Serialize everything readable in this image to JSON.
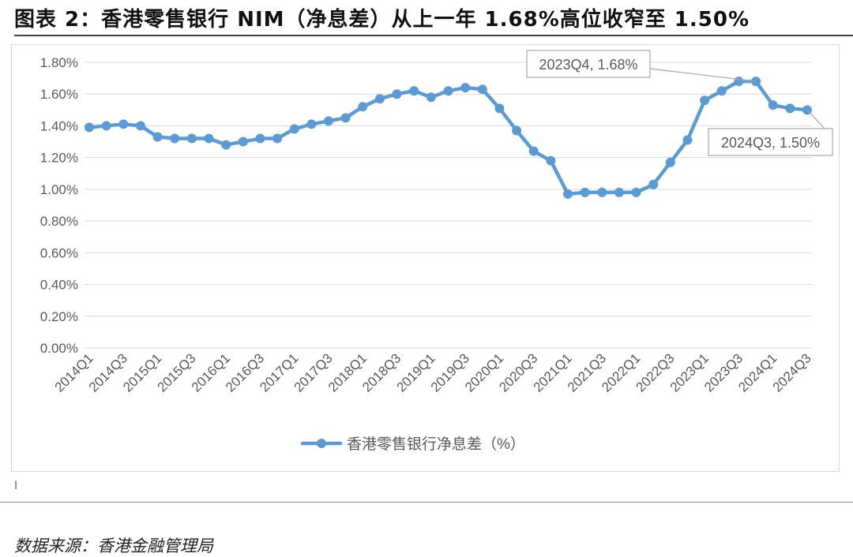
{
  "figure": {
    "title": "图表 2：香港零售银行 NIM（净息差）从上一年 1.68%高位收窄至 1.50%",
    "note_mark": "I",
    "source": "数据来源：香港金融管理局"
  },
  "chart_data": {
    "type": "line",
    "title": "",
    "xlabel": "",
    "ylabel": "",
    "ylim": [
      0,
      1.8
    ],
    "y_ticks": [
      "0.00%",
      "0.20%",
      "0.40%",
      "0.60%",
      "0.80%",
      "1.00%",
      "1.20%",
      "1.40%",
      "1.60%",
      "1.80%"
    ],
    "y_tick_values": [
      0,
      0.2,
      0.4,
      0.6,
      0.8,
      1.0,
      1.2,
      1.4,
      1.6,
      1.8
    ],
    "grid": true,
    "legend_position": "bottom",
    "x_tick_labels": [
      "2014Q1",
      "2014Q3",
      "2015Q1",
      "2015Q3",
      "2016Q1",
      "2016Q3",
      "2017Q1",
      "2017Q3",
      "2018Q1",
      "2018Q3",
      "2019Q1",
      "2019Q3",
      "2020Q1",
      "2020Q3",
      "2021Q1",
      "2021Q3",
      "2022Q1",
      "2022Q3",
      "2023Q1",
      "2023Q3",
      "2024Q1",
      "2024Q3"
    ],
    "categories": [
      "2014Q1",
      "2014Q2",
      "2014Q3",
      "2014Q4",
      "2015Q1",
      "2015Q2",
      "2015Q3",
      "2015Q4",
      "2016Q1",
      "2016Q2",
      "2016Q3",
      "2016Q4",
      "2017Q1",
      "2017Q2",
      "2017Q3",
      "2017Q4",
      "2018Q1",
      "2018Q2",
      "2018Q3",
      "2018Q4",
      "2019Q1",
      "2019Q2",
      "2019Q3",
      "2019Q4",
      "2020Q1",
      "2020Q2",
      "2020Q3",
      "2020Q4",
      "2021Q1",
      "2021Q2",
      "2021Q3",
      "2021Q4",
      "2022Q1",
      "2022Q2",
      "2022Q3",
      "2022Q4",
      "2023Q1",
      "2023Q2",
      "2023Q3",
      "2023Q4",
      "2024Q1",
      "2024Q2",
      "2024Q3"
    ],
    "series": [
      {
        "name": "香港零售银行净息差（%）",
        "color": "#5b9bd5",
        "values": [
          1.39,
          1.4,
          1.41,
          1.4,
          1.33,
          1.32,
          1.32,
          1.32,
          1.28,
          1.3,
          1.32,
          1.32,
          1.38,
          1.41,
          1.43,
          1.45,
          1.52,
          1.57,
          1.6,
          1.62,
          1.58,
          1.62,
          1.64,
          1.63,
          1.51,
          1.37,
          1.24,
          1.18,
          0.97,
          0.98,
          0.98,
          0.98,
          0.98,
          1.03,
          1.17,
          1.31,
          1.56,
          1.62,
          1.68,
          1.68,
          1.53,
          1.51,
          1.5
        ]
      }
    ],
    "annotations": [
      {
        "text": "2023Q4, 1.68%",
        "x": "2023Q4",
        "y": 1.68
      },
      {
        "text": "2024Q3, 1.50%",
        "x": "2024Q3",
        "y": 1.5
      }
    ],
    "gridline_color": "#d9d9d9",
    "axis_text_color": "#595959"
  }
}
